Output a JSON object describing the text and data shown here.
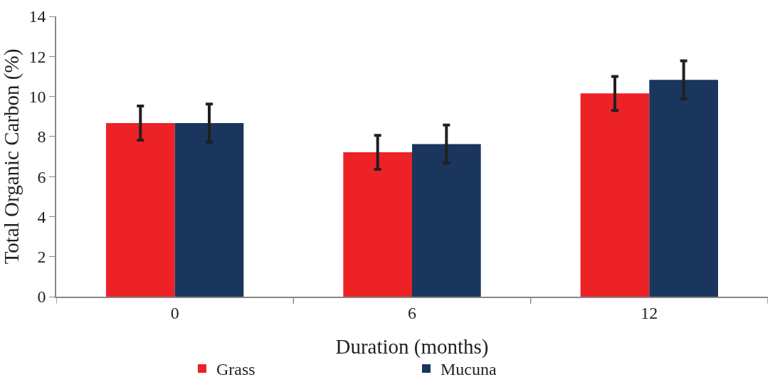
{
  "chart_data": {
    "type": "bar",
    "xlabel": "Duration (months)",
    "ylabel": "Total Organic Carbon (%)",
    "categories": [
      "0",
      "6",
      "12"
    ],
    "series": [
      {
        "name": "Grass",
        "color": "#ec2227",
        "values": [
          8.67,
          7.21,
          10.15
        ],
        "errors": [
          0.85,
          0.85,
          0.85
        ]
      },
      {
        "name": "Mucuna",
        "color": "#1a365d",
        "values": [
          8.67,
          7.62,
          10.83
        ],
        "errors": [
          0.95,
          0.95,
          0.95
        ]
      }
    ],
    "ylim": [
      0,
      14
    ],
    "yticks": [
      0,
      2,
      4,
      6,
      8,
      10,
      12,
      14
    ],
    "legend": "bottom"
  }
}
